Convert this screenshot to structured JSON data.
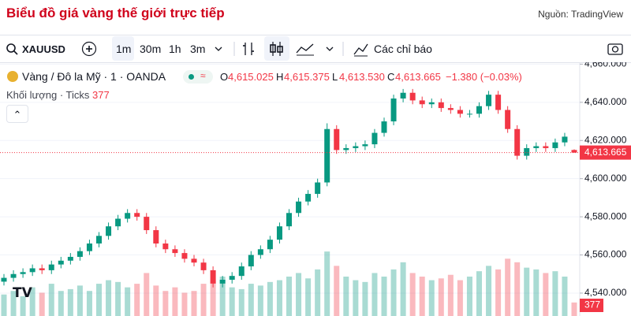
{
  "header": {
    "title": "Biểu đồ giá vàng thế giới trực tiếp",
    "source": "Nguồn: TradingView"
  },
  "toolbar": {
    "symbol": "XAUUSD",
    "intervals": [
      "1m",
      "30m",
      "1h",
      "3m"
    ],
    "indicators": "Các chỉ báo"
  },
  "legend": {
    "instrument": "Vàng / Đô la Mỹ · 1 · OANDA",
    "o_key": "O",
    "o": "4,615.025",
    "h_key": "H",
    "h": "4,615.375",
    "l_key": "L",
    "l": "4,613.530",
    "c_key": "C",
    "change": "−1.380 (−0.03%)",
    "volume_title": "Khối lượng · Ticks"
  },
  "chart_data": {
    "type": "candlestick",
    "open": [
      4546,
      4548,
      4550,
      4551,
      4553,
      4552,
      4555,
      4557,
      4559,
      4562,
      4566,
      4570,
      4575,
      4579,
      4582,
      4580,
      4573,
      4566,
      4563,
      4561,
      4558,
      4556,
      4552,
      4545,
      4547,
      4549,
      4554,
      4560,
      4563,
      4568,
      4575,
      4582,
      4588,
      4592,
      4598,
      4626,
      4615,
      4616,
      4617,
      4618,
      4624,
      4630,
      4642,
      4645,
      4641,
      4639,
      4640,
      4637,
      4636,
      4634,
      4634,
      4638,
      4644,
      4636,
      4626,
      4612,
      4616,
      4617,
      4616,
      4619,
      4615.025
    ],
    "high": [
      4550,
      4552,
      4553,
      4555,
      4555,
      4557,
      4559,
      4561,
      4564,
      4568,
      4572,
      4577,
      4581,
      4584,
      4584,
      4582,
      4575,
      4568,
      4565,
      4563,
      4560,
      4558,
      4554,
      4549,
      4551,
      4556,
      4562,
      4565,
      4570,
      4577,
      4584,
      4590,
      4594,
      4600,
      4629,
      4628,
      4618,
      4619,
      4620,
      4626,
      4632,
      4644,
      4647,
      4647,
      4643,
      4642,
      4642,
      4639,
      4638,
      4636,
      4640,
      4646,
      4646,
      4638,
      4628,
      4618,
      4619,
      4619,
      4621,
      4624,
      4615.375
    ],
    "low": [
      4544,
      4546,
      4548,
      4549,
      4550,
      4550,
      4553,
      4555,
      4557,
      4560,
      4564,
      4568,
      4573,
      4577,
      4578,
      4571,
      4564,
      4561,
      4559,
      4556,
      4554,
      4550,
      4543,
      4543,
      4545,
      4547,
      4552,
      4558,
      4561,
      4566,
      4573,
      4580,
      4586,
      4590,
      4596,
      4613,
      4613,
      4614,
      4615,
      4616,
      4622,
      4628,
      4640,
      4639,
      4637,
      4637,
      4635,
      4634,
      4632,
      4632,
      4632,
      4636,
      4634,
      4624,
      4610,
      4610,
      4614,
      4614,
      4614,
      4617,
      4613.53
    ],
    "close": [
      4548,
      4550,
      4551,
      4553,
      4552,
      4555,
      4557,
      4559,
      4562,
      4566,
      4570,
      4575,
      4579,
      4582,
      4580,
      4573,
      4566,
      4563,
      4561,
      4558,
      4556,
      4552,
      4545,
      4547,
      4549,
      4554,
      4560,
      4563,
      4568,
      4575,
      4582,
      4588,
      4592,
      4598,
      4626,
      4615,
      4616,
      4617,
      4618,
      4624,
      4630,
      4642,
      4645,
      4641,
      4639,
      4640,
      4637,
      4636,
      4634,
      4634,
      4638,
      4644,
      4636,
      4626,
      4612,
      4616,
      4617,
      4616,
      4619,
      4622,
      4613.665
    ],
    "volume": [
      600,
      700,
      550,
      800,
      650,
      900,
      700,
      750,
      850,
      700,
      900,
      1000,
      950,
      800,
      900,
      1200,
      850,
      700,
      800,
      650,
      700,
      900,
      1000,
      1100,
      800,
      750,
      900,
      850,
      950,
      1000,
      1100,
      1200,
      1050,
      1300,
      1800,
      1400,
      1100,
      1000,
      950,
      1200,
      1100,
      1300,
      1500,
      1200,
      1100,
      1000,
      1050,
      1150,
      1000,
      1100,
      1250,
      1400,
      1300,
      1600,
      1500,
      1350,
      1300,
      1200,
      1250,
      1100,
      377
    ],
    "last_price_label": "4,613.665",
    "up_color": "#089981",
    "down_color": "#f23645",
    "ylim": [
      4528,
      4661
    ],
    "yticks": [
      {
        "value": 4660,
        "label": "4,660.000"
      },
      {
        "value": 4640,
        "label": "4,640.000"
      },
      {
        "value": 4620,
        "label": "4,620.000"
      },
      {
        "value": 4600,
        "label": "4,600.000"
      },
      {
        "value": 4580,
        "label": "4,580.000"
      },
      {
        "value": 4560,
        "label": "4,560.000"
      },
      {
        "value": 4540,
        "label": "4,540.000"
      }
    ],
    "volume_ylim": [
      0,
      2200
    ],
    "grid": true
  }
}
